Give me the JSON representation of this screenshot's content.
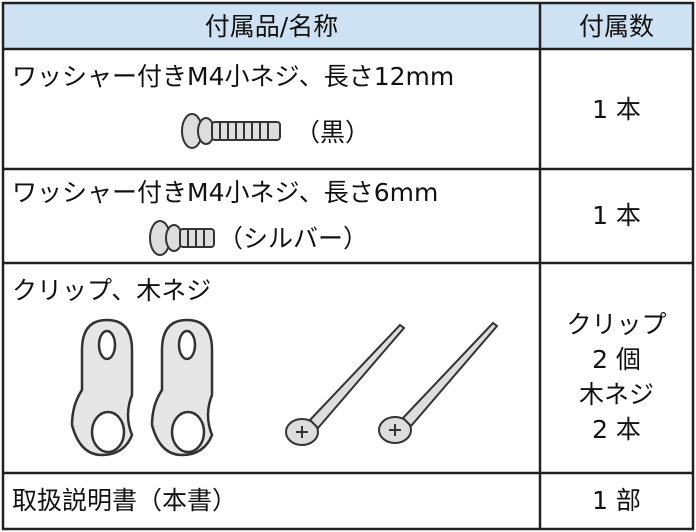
{
  "table": {
    "header": [
      "付属品/名称",
      "付属数"
    ],
    "rows": [
      {
        "name": "ワッシャー付きM4小ネジ、長さ12mm",
        "note": "（黒）",
        "count": [
          "1 本"
        ]
      },
      {
        "name": "ワッシャー付きM4小ネジ、長さ6mm",
        "note": "（シルバー）",
        "count": [
          "1 本"
        ]
      },
      {
        "name": "クリップ、木ネジ",
        "count": [
          "クリップ",
          "2 個",
          "木ネジ",
          "2 本"
        ]
      },
      {
        "name": "取扱説明書（本書）",
        "count": [
          "1 部"
        ]
      }
    ]
  }
}
